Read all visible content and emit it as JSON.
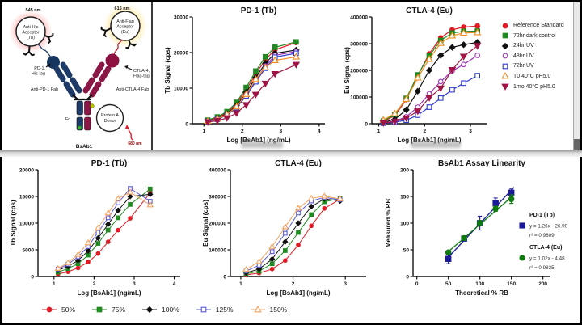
{
  "figure": {
    "bg": "#000000",
    "panel_bg": "#ffffff"
  },
  "diagram": {
    "nm_left": "545 nm",
    "nm_right": "615 nm",
    "nm_bottom": "680 nm",
    "acceptor_left": [
      "Anti-His",
      "Acceptor",
      "(Tb)"
    ],
    "acceptor_right": [
      "Anti-Flag",
      "Acceptor",
      "(Eu)"
    ],
    "pd1_tag": [
      "PD-1,",
      "His-tag"
    ],
    "ctla4_tag": [
      "CTLA-4,",
      "Flag-tag"
    ],
    "fab_left": "Anti-PD-1 Fab",
    "fab_right": "Anti-CTLA-4 Fab",
    "fc": "Fc",
    "donor": [
      "Protein A",
      "Donor"
    ],
    "molecule": "BsAb1",
    "colors": {
      "navy": "#1d3b66",
      "maroon": "#8a1745",
      "glow_red": "#ff8080",
      "glow_yellow": "#ffd84d",
      "green_dot": "#2fae2f",
      "yellow_dot": "#b9c400"
    }
  },
  "legend_top": {
    "items": [
      {
        "label": "Reference Standard",
        "color": "#e01b24",
        "marker": "circle",
        "filled": true
      },
      {
        "label": "72hr dark control",
        "color": "#1f8a1f",
        "marker": "square",
        "filled": true
      },
      {
        "label": "24hr UV",
        "color": "#111111",
        "marker": "diamond",
        "filled": true
      },
      {
        "label": "48hr UV",
        "color": "#9b30b5",
        "marker": "circle",
        "filled": false
      },
      {
        "label": "72hr UV",
        "color": "#2f3bd1",
        "marker": "square",
        "filled": false
      },
      {
        "label": "T0 40°C pH5.0",
        "color": "#f28a1e",
        "marker": "triangle-up",
        "filled": false
      },
      {
        "label": "1mo 40°C pH5.0",
        "color": "#a01545",
        "marker": "triangle-down",
        "filled": true
      }
    ]
  },
  "legend_bottom": {
    "items": [
      {
        "label": "50%",
        "color": "#e01b24",
        "marker": "circle",
        "filled": true
      },
      {
        "label": "75%",
        "color": "#1f8a1f",
        "marker": "square",
        "filled": true
      },
      {
        "label": "100%",
        "color": "#111111",
        "marker": "diamond",
        "filled": true
      },
      {
        "label": "125%",
        "color": "#5b5bd6",
        "marker": "square",
        "filled": false
      },
      {
        "label": "150%",
        "color": "#f5a361",
        "marker": "triangle-up",
        "filled": false
      }
    ]
  },
  "chart_data": [
    {
      "id": "top_pd1",
      "type": "line",
      "title": "PD-1 (Tb)",
      "xlabel": "Log [BsAb1] (ng/mL)",
      "ylabel": "Tb Signal (cps)",
      "xlim": [
        0.7,
        4.15
      ],
      "ylim": [
        0,
        30000
      ],
      "xticks": [
        1,
        2,
        3,
        4
      ],
      "yticks": [
        0,
        10000,
        20000,
        30000
      ],
      "x": [
        1.1,
        1.35,
        1.6,
        1.85,
        2.1,
        2.35,
        2.6,
        2.85,
        3.4
      ],
      "series": [
        {
          "name": "Reference Standard",
          "color": "#e01b24",
          "marker": "circle",
          "filled": true,
          "y": [
            900,
            1700,
            3100,
            5600,
            9500,
            14000,
            18000,
            20800,
            22800
          ]
        },
        {
          "name": "72hr dark control",
          "color": "#1f8a1f",
          "marker": "square",
          "filled": true,
          "y": [
            1000,
            1900,
            3400,
            6000,
            10200,
            14800,
            18800,
            21500,
            23000
          ]
        },
        {
          "name": "24hr UV",
          "color": "#111111",
          "marker": "diamond",
          "filled": true,
          "y": [
            800,
            1500,
            2800,
            5100,
            8800,
            13000,
            17000,
            19800,
            20700
          ]
        },
        {
          "name": "48hr UV",
          "color": "#9b30b5",
          "marker": "circle",
          "filled": false,
          "y": [
            700,
            1300,
            2500,
            4700,
            8200,
            12300,
            16200,
            19200,
            20300
          ]
        },
        {
          "name": "72hr UV",
          "color": "#2f3bd1",
          "marker": "square",
          "filled": false,
          "y": [
            650,
            1250,
            2400,
            4500,
            7800,
            11800,
            15600,
            18700,
            19800
          ]
        },
        {
          "name": "T0 40°C pH5.0",
          "color": "#f28a1e",
          "marker": "triangle-up",
          "filled": false,
          "y": [
            750,
            1400,
            2600,
            4800,
            8300,
            12500,
            15800,
            17800,
            18800
          ]
        },
        {
          "name": "1mo 40°C pH5.0",
          "color": "#a01545",
          "marker": "triangle-down",
          "filled": true,
          "y": [
            450,
            850,
            1600,
            3000,
            5300,
            8200,
            11300,
            14000,
            16600
          ]
        }
      ]
    },
    {
      "id": "top_ctla4",
      "type": "line",
      "title": "CTLA-4 (Eu)",
      "xlabel": "Log [BsAb1] (ng/mL)",
      "ylabel": "Eu Signal (cps)",
      "xlim": [
        0.85,
        3.35
      ],
      "ylim": [
        0,
        400000
      ],
      "xticks": [
        1,
        2,
        3
      ],
      "yticks": [
        0,
        100000,
        200000,
        300000,
        400000
      ],
      "x": [
        1.1,
        1.35,
        1.6,
        1.85,
        2.1,
        2.35,
        2.6,
        2.85,
        3.15
      ],
      "series": [
        {
          "name": "Reference Standard",
          "color": "#e01b24",
          "marker": "circle",
          "filled": true,
          "y": [
            8000,
            30000,
            90000,
            180000,
            262000,
            322000,
            352000,
            362000,
            366000
          ]
        },
        {
          "name": "72hr dark control",
          "color": "#1f8a1f",
          "marker": "square",
          "filled": true,
          "y": [
            10000,
            34000,
            95000,
            183000,
            255000,
            312000,
            340000,
            346000,
            347000
          ]
        },
        {
          "name": "24hr UV",
          "color": "#111111",
          "marker": "diamond",
          "filled": true,
          "y": [
            5000,
            16000,
            52000,
            122000,
            200000,
            256000,
            286000,
            296000,
            305000
          ]
        },
        {
          "name": "48hr UV",
          "color": "#9b30b5",
          "marker": "circle",
          "filled": false,
          "y": [
            3000,
            9000,
            26000,
            62000,
            112000,
            158000,
            198000,
            222000,
            256000
          ]
        },
        {
          "name": "72hr UV",
          "color": "#2f3bd1",
          "marker": "square",
          "filled": false,
          "y": [
            2000,
            6000,
            13000,
            32000,
            62000,
            96000,
            127000,
            152000,
            180000
          ]
        },
        {
          "name": "T0 40°C pH5.0",
          "color": "#f28a1e",
          "marker": "triangle-up",
          "filled": false,
          "y": [
            14000,
            38000,
            92000,
            172000,
            242000,
            302000,
            330000,
            340000,
            342000
          ]
        },
        {
          "name": "1mo 40°C pH5.0",
          "color": "#a01545",
          "marker": "triangle-down",
          "filled": true,
          "y": [
            3000,
            8000,
            21000,
            47000,
            97000,
            133000,
            202000,
            252000,
            292000
          ]
        }
      ]
    },
    {
      "id": "bot_pd1",
      "type": "line",
      "title": "PD-1 (Tb)",
      "xlabel": "Log [BsAb1] (ng/mL)",
      "ylabel": "Tb Signal (cps)",
      "xlim": [
        0.6,
        4.15
      ],
      "ylim": [
        0,
        20000
      ],
      "xticks": [
        1,
        2,
        3,
        4
      ],
      "yticks": [
        0,
        5000,
        10000,
        15000,
        20000
      ],
      "x": [
        1.1,
        1.35,
        1.6,
        1.85,
        2.1,
        2.35,
        2.6,
        2.9,
        3.4
      ],
      "series": [
        {
          "name": "50%",
          "color": "#e01b24",
          "marker": "circle",
          "filled": true,
          "y": [
            450,
            900,
            1600,
            2700,
            4300,
            6500,
            8700,
            10900,
            15700
          ]
        },
        {
          "name": "75%",
          "color": "#1f8a1f",
          "marker": "square",
          "filled": true,
          "y": [
            800,
            1500,
            2400,
            4000,
            6200,
            8700,
            11000,
            13500,
            16400
          ]
        },
        {
          "name": "100%",
          "color": "#111111",
          "marker": "diamond",
          "filled": true,
          "y": [
            1200,
            1900,
            3000,
            4800,
            7200,
            9800,
            12400,
            15000,
            15400
          ]
        },
        {
          "name": "125%",
          "color": "#5b5bd6",
          "marker": "square",
          "filled": false,
          "y": [
            1400,
            2300,
            3700,
            5600,
            8300,
            11000,
            13800,
            16500,
            14100
          ]
        },
        {
          "name": "150%",
          "color": "#f5a361",
          "marker": "triangle-up",
          "filled": false,
          "y": [
            1500,
            2600,
            4100,
            6300,
            9100,
            11900,
            14600,
            15800,
            13400
          ]
        }
      ]
    },
    {
      "id": "bot_ctla4",
      "type": "line",
      "title": "CTLA-4 (Eu)",
      "xlabel": "Log [BsAb1] (ng/mL)",
      "ylabel": "Eu Signal (cps)",
      "xlim": [
        0.8,
        3.4
      ],
      "ylim": [
        0,
        400000
      ],
      "xticks": [
        1,
        2,
        3
      ],
      "yticks": [
        0,
        100000,
        200000,
        300000,
        400000
      ],
      "x": [
        1.1,
        1.35,
        1.6,
        1.85,
        2.1,
        2.35,
        2.6,
        2.9
      ],
      "series": [
        {
          "name": "50%",
          "color": "#e01b24",
          "marker": "circle",
          "filled": true,
          "y": [
            6000,
            13000,
            28000,
            60000,
            118000,
            190000,
            255000,
            290000
          ]
        },
        {
          "name": "75%",
          "color": "#1f8a1f",
          "marker": "square",
          "filled": true,
          "y": [
            10000,
            20000,
            48000,
            97000,
            165000,
            232000,
            280000,
            292000
          ]
        },
        {
          "name": "100%",
          "color": "#111111",
          "marker": "diamond",
          "filled": true,
          "y": [
            14000,
            28000,
            65000,
            130000,
            200000,
            262000,
            291000,
            283000
          ]
        },
        {
          "name": "125%",
          "color": "#5b5bd6",
          "marker": "square",
          "filled": false,
          "y": [
            20000,
            42000,
            93000,
            162000,
            238000,
            283000,
            296000,
            288000
          ]
        },
        {
          "name": "150%",
          "color": "#f5a361",
          "marker": "triangle-up",
          "filled": false,
          "y": [
            26000,
            56000,
            112000,
            186000,
            256000,
            293000,
            301000,
            291000
          ]
        }
      ]
    },
    {
      "id": "linearity",
      "type": "scatter",
      "title": "BsAb1 Assay Linearity",
      "xlabel": "Theoretical % RB",
      "ylabel": "Measured % RB",
      "xlim": [
        -6,
        212
      ],
      "ylim": [
        0,
        200
      ],
      "xticks": [
        0,
        50,
        100,
        150,
        200
      ],
      "yticks": [
        0,
        50,
        100,
        150,
        200
      ],
      "series": [
        {
          "name": "PD-1 (Tb)",
          "color": "#1a1a99",
          "marker": "square",
          "filled": true,
          "x": [
            50,
            75,
            100,
            125,
            150
          ],
          "y": [
            33,
            71,
            100,
            137,
            157
          ],
          "err": [
            9,
            3,
            13,
            10,
            7
          ],
          "fit": {
            "slope": 1.26,
            "intercept": -26.9,
            "x0": 46,
            "x1": 154
          },
          "eq": "y = 1.26x - 26.90",
          "r2": "r² = 0.9609"
        },
        {
          "name": "CTLA-4 (Eu)",
          "color": "#0e7a0e",
          "marker": "circle",
          "filled": true,
          "x": [
            50,
            75,
            100,
            125,
            150
          ],
          "y": [
            45,
            72,
            100,
            127,
            145
          ],
          "err": [
            3,
            2,
            5,
            5,
            8
          ],
          "fit": {
            "slope": 1.02,
            "intercept": -4.48,
            "x0": 46,
            "x1": 154
          },
          "eq": "y = 1.02x - 4.48",
          "r2": "r² = 0.9835"
        }
      ]
    }
  ]
}
